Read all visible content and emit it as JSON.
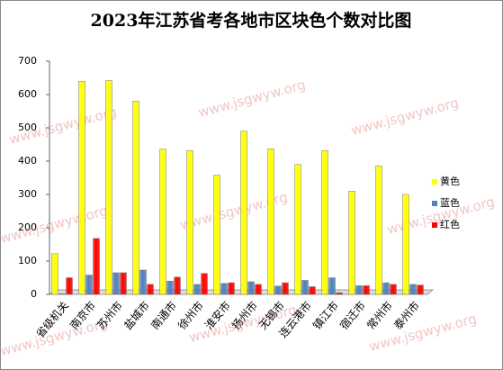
{
  "chart_data": {
    "type": "bar",
    "title": "2023年江苏省考各地市区块色个数对比图",
    "watermark": "www.jsgwyw.org",
    "categories": [
      "省级机关",
      "南京市",
      "苏州市",
      "盐城市",
      "南通市",
      "徐州市",
      "淮安市",
      "扬州市",
      "无锡市",
      "连云港市",
      "镇江市",
      "宿迁市",
      "常州市",
      "泰州市"
    ],
    "series": [
      {
        "name": "黄色",
        "color": "#ffff00",
        "values": [
          122,
          640,
          642,
          580,
          436,
          432,
          358,
          490,
          437,
          390,
          432,
          310,
          386,
          300
        ]
      },
      {
        "name": "蓝色",
        "color": "#4f81bd",
        "values": [
          2,
          58,
          65,
          73,
          40,
          30,
          33,
          38,
          25,
          42,
          50,
          26,
          35,
          30
        ]
      },
      {
        "name": "红色",
        "color": "#ff0000",
        "values": [
          50,
          168,
          65,
          30,
          52,
          63,
          35,
          30,
          35,
          23,
          5,
          26,
          30,
          28
        ]
      }
    ],
    "ylim": [
      0,
      700
    ],
    "yticks": [
      0,
      100,
      200,
      300,
      400,
      500,
      600,
      700
    ],
    "grid": false,
    "legend": "right"
  }
}
